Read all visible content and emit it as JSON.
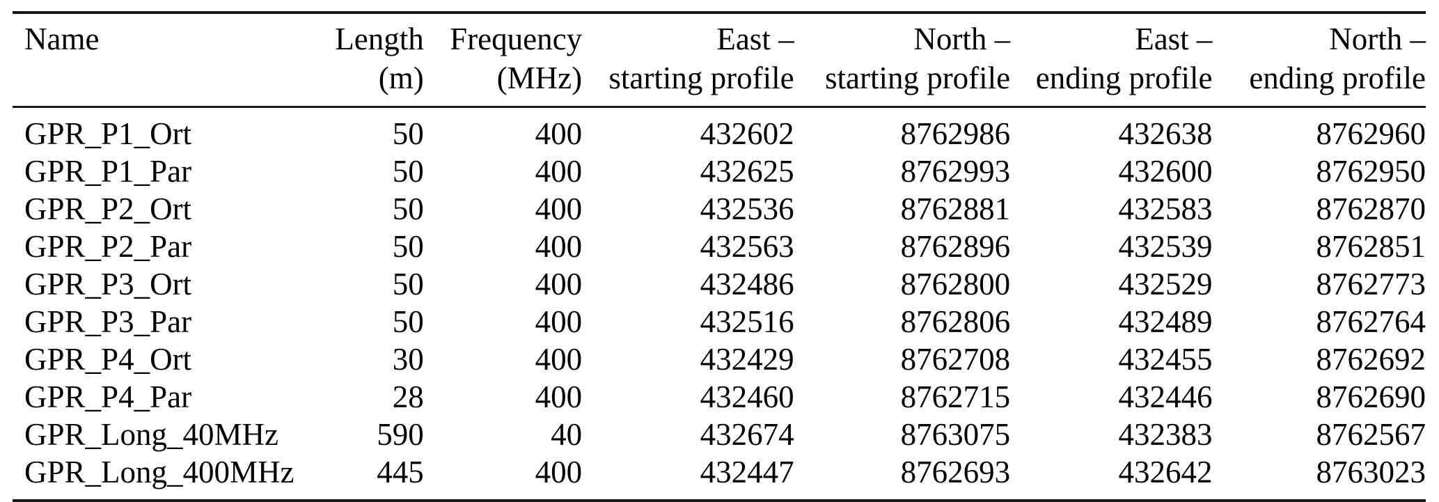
{
  "colors": {
    "background": "#ffffff",
    "text": "#000000",
    "rule": "#161616"
  },
  "table": {
    "description": "GPR survey profiles table",
    "columns": [
      {
        "id": "name",
        "line1": "Name",
        "line2": "",
        "align": "left"
      },
      {
        "id": "length",
        "line1": "Length",
        "line2": "(m)",
        "align": "right"
      },
      {
        "id": "frequency",
        "line1": "Frequency",
        "line2": "(MHz)",
        "align": "right"
      },
      {
        "id": "east_start",
        "line1": "East –",
        "line2": "starting profile",
        "align": "right"
      },
      {
        "id": "north_start",
        "line1": "North –",
        "line2": "starting profile",
        "align": "right"
      },
      {
        "id": "east_end",
        "line1": "East –",
        "line2": "ending profile",
        "align": "right"
      },
      {
        "id": "north_end",
        "line1": "North –",
        "line2": "ending profile",
        "align": "right"
      }
    ],
    "rows": [
      {
        "name": "GPR_P1_Ort",
        "length": "50",
        "frequency": "400",
        "east_start": "432602",
        "north_start": "8762986",
        "east_end": "432638",
        "north_end": "8762960"
      },
      {
        "name": "GPR_P1_Par",
        "length": "50",
        "frequency": "400",
        "east_start": "432625",
        "north_start": "8762993",
        "east_end": "432600",
        "north_end": "8762950"
      },
      {
        "name": "GPR_P2_Ort",
        "length": "50",
        "frequency": "400",
        "east_start": "432536",
        "north_start": "8762881",
        "east_end": "432583",
        "north_end": "8762870"
      },
      {
        "name": "GPR_P2_Par",
        "length": "50",
        "frequency": "400",
        "east_start": "432563",
        "north_start": "8762896",
        "east_end": "432539",
        "north_end": "8762851"
      },
      {
        "name": "GPR_P3_Ort",
        "length": "50",
        "frequency": "400",
        "east_start": "432486",
        "north_start": "8762800",
        "east_end": "432529",
        "north_end": "8762773"
      },
      {
        "name": "GPR_P3_Par",
        "length": "50",
        "frequency": "400",
        "east_start": "432516",
        "north_start": "8762806",
        "east_end": "432489",
        "north_end": "8762764"
      },
      {
        "name": "GPR_P4_Ort",
        "length": "30",
        "frequency": "400",
        "east_start": "432429",
        "north_start": "8762708",
        "east_end": "432455",
        "north_end": "8762692"
      },
      {
        "name": "GPR_P4_Par",
        "length": "28",
        "frequency": "400",
        "east_start": "432460",
        "north_start": "8762715",
        "east_end": "432446",
        "north_end": "8762690"
      },
      {
        "name": "GPR_Long_40MHz",
        "length": "590",
        "frequency": "40",
        "east_start": "432674",
        "north_start": "8763075",
        "east_end": "432383",
        "north_end": "8762567"
      },
      {
        "name": "GPR_Long_400MHz",
        "length": "445",
        "frequency": "400",
        "east_start": "432447",
        "north_start": "8762693",
        "east_end": "432642",
        "north_end": "8763023"
      }
    ]
  }
}
